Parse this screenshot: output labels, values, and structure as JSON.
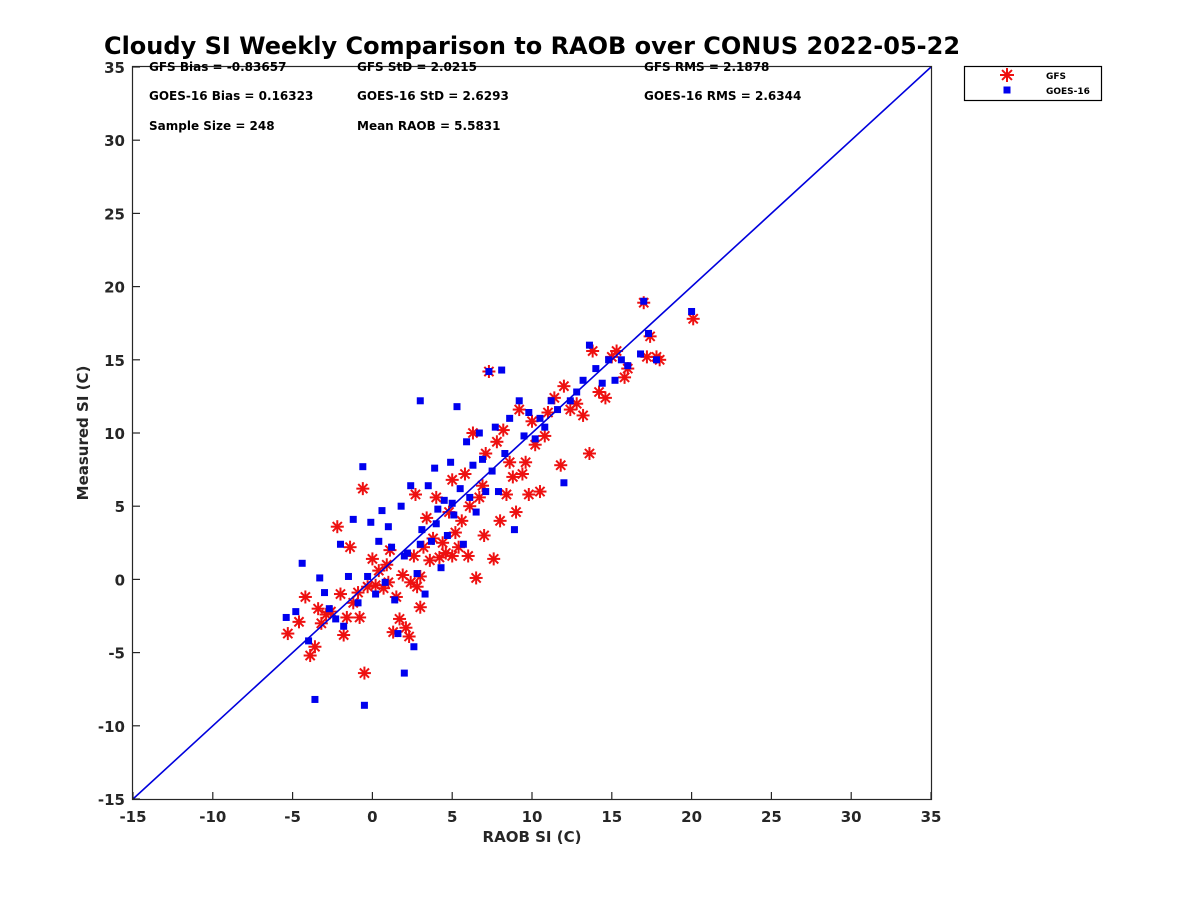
{
  "chart_data": {
    "type": "scatter",
    "title": "Cloudy SI Weekly Comparison to RAOB over CONUS 2022-05-22",
    "xlabel": "RAOB SI (C)",
    "ylabel": "Measured SI (C)",
    "xlim": [
      -15,
      35
    ],
    "ylim": [
      -15,
      35
    ],
    "xticks": [
      "-15",
      "-10",
      "-5",
      "0",
      "5",
      "10",
      "15",
      "20",
      "25",
      "30",
      "35"
    ],
    "yticks": [
      "-15",
      "-10",
      "-5",
      "0",
      "5",
      "10",
      "15",
      "20",
      "25",
      "30",
      "35"
    ],
    "grid": false,
    "legend_position": "outside-top-right",
    "reference_line": {
      "x": [
        -15,
        35
      ],
      "y": [
        -15,
        35
      ],
      "color": "#0000dd"
    },
    "stats": {
      "gfs_bias": "GFS Bias = -0.83657",
      "gfs_std": "GFS StD = 2.0215",
      "gfs_rms": "GFS RMS = 2.1878",
      "goes_bias": "GOES-16 Bias = 0.16323",
      "goes_std": "GOES-16 StD = 2.6293",
      "goes_rms": "GOES-16 RMS = 2.6344",
      "sample_size": "Sample Size = 248",
      "mean_raob": "Mean RAOB = 5.5831"
    },
    "series": [
      {
        "name": "GFS",
        "marker": "asterisk",
        "color": "#ee1111",
        "points": [
          [
            -5.3,
            -3.7
          ],
          [
            -4.6,
            -2.9
          ],
          [
            -4.2,
            -1.2
          ],
          [
            -3.9,
            -5.2
          ],
          [
            -3.6,
            -4.6
          ],
          [
            -3.4,
            -2.0
          ],
          [
            -3.2,
            -3.0
          ],
          [
            -2.9,
            -2.4
          ],
          [
            -2.6,
            -2.2
          ],
          [
            -2.2,
            3.6
          ],
          [
            -2.0,
            -1.0
          ],
          [
            -1.8,
            -3.8
          ],
          [
            -1.6,
            -2.6
          ],
          [
            -1.4,
            2.2
          ],
          [
            -1.2,
            -1.6
          ],
          [
            -0.9,
            -0.9
          ],
          [
            -0.8,
            -2.6
          ],
          [
            -0.6,
            6.2
          ],
          [
            -0.5,
            -6.4
          ],
          [
            -0.3,
            -0.5
          ],
          [
            0.0,
            1.4
          ],
          [
            0.2,
            -0.4
          ],
          [
            0.4,
            0.6
          ],
          [
            0.7,
            -0.6
          ],
          [
            0.9,
            1.0
          ],
          [
            1.1,
            2.0
          ],
          [
            1.3,
            -3.6
          ],
          [
            1.5,
            -1.2
          ],
          [
            1.7,
            -2.7
          ],
          [
            1.9,
            0.3
          ],
          [
            2.1,
            -3.3
          ],
          [
            2.3,
            -3.9
          ],
          [
            2.4,
            -0.2
          ],
          [
            2.6,
            1.6
          ],
          [
            2.7,
            5.8
          ],
          [
            2.8,
            -0.5
          ],
          [
            3.0,
            -1.9
          ],
          [
            3.2,
            2.2
          ],
          [
            3.4,
            4.2
          ],
          [
            3.6,
            1.3
          ],
          [
            3.8,
            2.8
          ],
          [
            4.0,
            5.6
          ],
          [
            4.2,
            1.5
          ],
          [
            4.4,
            2.5
          ],
          [
            4.6,
            1.8
          ],
          [
            4.8,
            4.6
          ],
          [
            5.0,
            6.8
          ],
          [
            5.2,
            3.2
          ],
          [
            5.4,
            2.2
          ],
          [
            5.6,
            4.0
          ],
          [
            5.8,
            7.2
          ],
          [
            6.0,
            1.6
          ],
          [
            6.1,
            5.0
          ],
          [
            6.3,
            10.0
          ],
          [
            6.5,
            0.1
          ],
          [
            6.7,
            5.6
          ],
          [
            6.9,
            6.4
          ],
          [
            7.1,
            8.6
          ],
          [
            7.3,
            14.2
          ],
          [
            7.6,
            1.4
          ],
          [
            7.8,
            9.4
          ],
          [
            8.0,
            4.0
          ],
          [
            8.2,
            10.2
          ],
          [
            8.4,
            5.8
          ],
          [
            8.6,
            8.0
          ],
          [
            8.8,
            7.0
          ],
          [
            9.0,
            4.6
          ],
          [
            9.2,
            11.6
          ],
          [
            9.4,
            7.2
          ],
          [
            9.6,
            8.0
          ],
          [
            9.8,
            5.8
          ],
          [
            10.0,
            10.8
          ],
          [
            10.2,
            9.2
          ],
          [
            10.5,
            6.0
          ],
          [
            10.8,
            9.8
          ],
          [
            11.0,
            11.4
          ],
          [
            11.4,
            12.4
          ],
          [
            11.8,
            7.8
          ],
          [
            12.0,
            13.2
          ],
          [
            12.4,
            11.6
          ],
          [
            12.8,
            12.0
          ],
          [
            13.2,
            11.2
          ],
          [
            13.6,
            8.6
          ],
          [
            13.8,
            15.6
          ],
          [
            14.2,
            12.8
          ],
          [
            14.6,
            12.4
          ],
          [
            15.0,
            15.2
          ],
          [
            15.3,
            15.6
          ],
          [
            15.8,
            13.8
          ],
          [
            16.0,
            14.4
          ],
          [
            17.0,
            18.9
          ],
          [
            17.2,
            15.2
          ],
          [
            17.4,
            16.6
          ],
          [
            17.8,
            15.2
          ],
          [
            18.0,
            15.0
          ],
          [
            20.1,
            17.8
          ],
          [
            7.0,
            3.0
          ],
          [
            5.0,
            1.6
          ],
          [
            3.0,
            0.2
          ],
          [
            1.0,
            -0.2
          ]
        ]
      },
      {
        "name": "GOES-16",
        "marker": "square",
        "color": "#0000ee",
        "points": [
          [
            -5.4,
            -2.6
          ],
          [
            -4.8,
            -2.2
          ],
          [
            -4.4,
            1.1
          ],
          [
            -4.0,
            -4.2
          ],
          [
            -3.6,
            -8.2
          ],
          [
            -3.3,
            0.1
          ],
          [
            -3.0,
            -0.9
          ],
          [
            -2.7,
            -2.0
          ],
          [
            -2.3,
            -2.7
          ],
          [
            -2.0,
            2.4
          ],
          [
            -1.8,
            -3.2
          ],
          [
            -1.5,
            0.2
          ],
          [
            -1.2,
            4.1
          ],
          [
            -0.9,
            -1.6
          ],
          [
            -0.6,
            7.7
          ],
          [
            -0.5,
            -8.6
          ],
          [
            -0.3,
            0.2
          ],
          [
            -0.1,
            3.9
          ],
          [
            0.2,
            -1.0
          ],
          [
            0.4,
            2.6
          ],
          [
            0.6,
            4.7
          ],
          [
            0.8,
            -0.2
          ],
          [
            1.0,
            3.6
          ],
          [
            1.2,
            2.2
          ],
          [
            1.4,
            -1.4
          ],
          [
            1.6,
            -3.7
          ],
          [
            1.8,
            5.0
          ],
          [
            2.0,
            -6.4
          ],
          [
            2.2,
            1.8
          ],
          [
            2.4,
            6.4
          ],
          [
            2.6,
            -4.6
          ],
          [
            2.8,
            0.4
          ],
          [
            3.0,
            12.2
          ],
          [
            3.1,
            3.4
          ],
          [
            3.3,
            -1.0
          ],
          [
            3.5,
            6.4
          ],
          [
            3.7,
            2.6
          ],
          [
            3.9,
            7.6
          ],
          [
            4.1,
            4.8
          ],
          [
            4.3,
            0.8
          ],
          [
            4.5,
            5.4
          ],
          [
            4.7,
            3.0
          ],
          [
            4.9,
            8.0
          ],
          [
            5.1,
            4.4
          ],
          [
            5.3,
            11.8
          ],
          [
            5.5,
            6.2
          ],
          [
            5.7,
            2.4
          ],
          [
            5.9,
            9.4
          ],
          [
            6.1,
            5.6
          ],
          [
            6.3,
            7.8
          ],
          [
            6.5,
            4.6
          ],
          [
            6.7,
            10.0
          ],
          [
            6.9,
            8.2
          ],
          [
            7.1,
            6.0
          ],
          [
            7.3,
            14.2
          ],
          [
            7.5,
            7.4
          ],
          [
            7.7,
            10.4
          ],
          [
            7.9,
            6.0
          ],
          [
            8.1,
            14.3
          ],
          [
            8.3,
            8.6
          ],
          [
            8.6,
            11.0
          ],
          [
            8.9,
            3.4
          ],
          [
            9.2,
            12.2
          ],
          [
            9.5,
            9.8
          ],
          [
            9.8,
            11.4
          ],
          [
            10.2,
            9.6
          ],
          [
            10.5,
            11.0
          ],
          [
            10.8,
            10.4
          ],
          [
            11.2,
            12.2
          ],
          [
            11.6,
            11.6
          ],
          [
            12.0,
            6.6
          ],
          [
            12.4,
            12.2
          ],
          [
            12.8,
            12.8
          ],
          [
            13.2,
            13.6
          ],
          [
            13.6,
            16.0
          ],
          [
            14.0,
            14.4
          ],
          [
            14.4,
            13.4
          ],
          [
            14.8,
            15.0
          ],
          [
            15.2,
            13.6
          ],
          [
            15.6,
            15.0
          ],
          [
            16.0,
            14.6
          ],
          [
            16.8,
            15.4
          ],
          [
            17.0,
            19.0
          ],
          [
            17.3,
            16.8
          ],
          [
            17.8,
            15.0
          ],
          [
            20.0,
            18.3
          ],
          [
            5.0,
            5.2
          ],
          [
            4.0,
            3.8
          ],
          [
            3.0,
            2.4
          ],
          [
            2.0,
            1.6
          ]
        ]
      }
    ]
  }
}
